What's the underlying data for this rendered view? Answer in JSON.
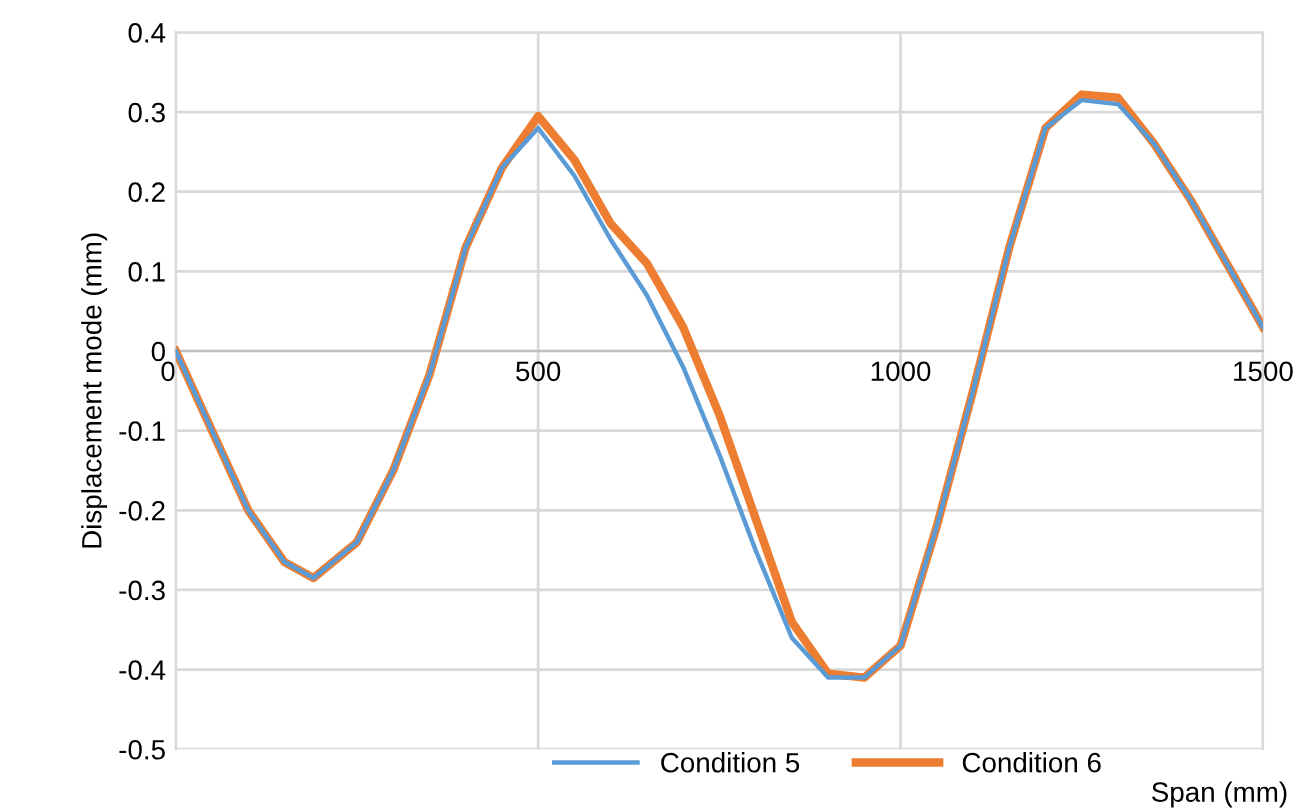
{
  "chart_data": {
    "type": "line",
    "xlabel": "Span (mm)",
    "ylabel": "Displacement mode (mm)",
    "x": [
      0,
      50,
      100,
      150,
      190,
      250,
      300,
      350,
      400,
      450,
      500,
      550,
      600,
      650,
      700,
      750,
      800,
      850,
      900,
      950,
      1000,
      1050,
      1100,
      1150,
      1200,
      1250,
      1300,
      1350,
      1400,
      1450,
      1500
    ],
    "series": [
      {
        "name": "Condition 5",
        "color": "#5b9bd5",
        "values": [
          0,
          -0.1,
          -0.2,
          -0.265,
          -0.285,
          -0.24,
          -0.15,
          -0.03,
          0.13,
          0.23,
          0.28,
          0.22,
          0.14,
          0.07,
          -0.02,
          -0.13,
          -0.25,
          -0.36,
          -0.41,
          -0.41,
          -0.37,
          -0.22,
          -0.05,
          0.13,
          0.28,
          0.315,
          0.31,
          0.26,
          0.19,
          0.11,
          0.03
        ]
      },
      {
        "name": "Condition 6",
        "color": "#ed7d31",
        "values": [
          0,
          -0.1,
          -0.2,
          -0.265,
          -0.285,
          -0.24,
          -0.15,
          -0.03,
          0.13,
          0.23,
          0.295,
          0.24,
          0.16,
          0.11,
          0.03,
          -0.08,
          -0.21,
          -0.34,
          -0.405,
          -0.41,
          -0.37,
          -0.22,
          -0.05,
          0.13,
          0.28,
          0.322,
          0.318,
          0.26,
          0.19,
          0.11,
          0.03
        ]
      }
    ],
    "xlim": [
      0,
      1500
    ],
    "xticks": [
      0,
      500,
      1000,
      1500
    ],
    "ylim": [
      -0.5,
      0.4
    ],
    "yticks": [
      -0.5,
      -0.4,
      -0.3,
      -0.2,
      -0.1,
      0,
      0.1,
      0.2,
      0.3,
      0.4
    ],
    "grid": true,
    "legend": "bottom",
    "marker": "none",
    "line_style": "solid"
  }
}
